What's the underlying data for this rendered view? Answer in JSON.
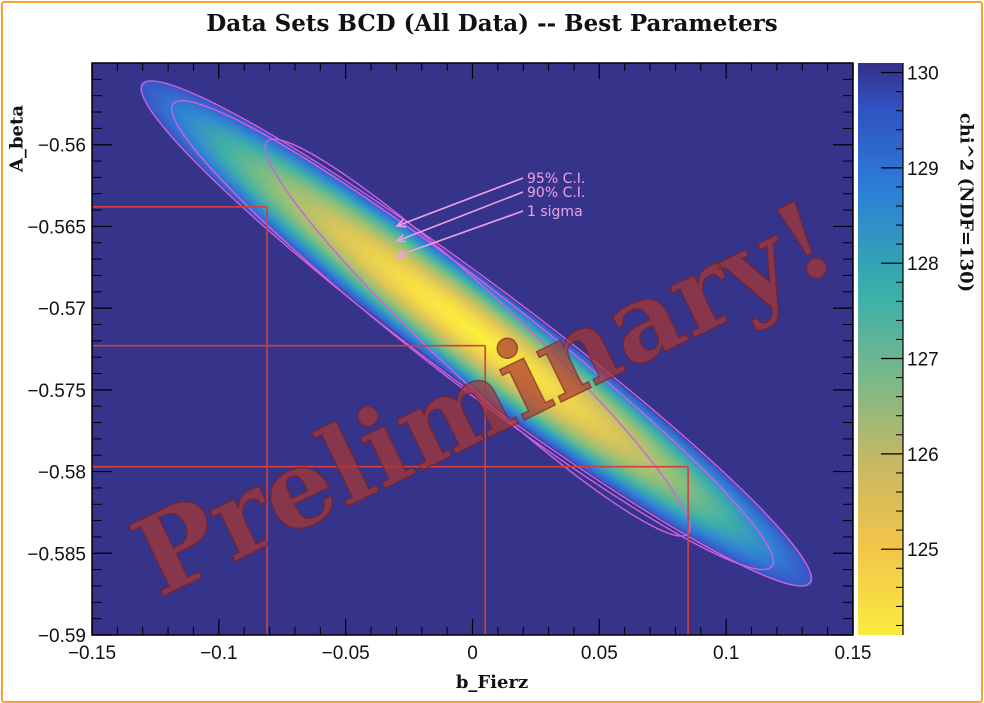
{
  "chart_data": {
    "type": "heatmap",
    "title": "Data Sets BCD (All Data) -- Best Parameters",
    "xlabel": "b_Fierz",
    "ylabel": "A_beta",
    "zlabel": "chi^2 (NDF=130)",
    "xlim": [
      -0.15,
      0.15
    ],
    "ylim": [
      -0.59,
      -0.555
    ],
    "zlim": [
      124.1,
      130.1
    ],
    "x_ticks": [
      -0.15,
      -0.1,
      -0.05,
      0,
      0.05,
      0.1,
      0.15
    ],
    "x_tick_labels": [
      "−0.15",
      "−0.1",
      "−0.05",
      "0",
      "0.05",
      "0.1",
      "0.15"
    ],
    "y_ticks": [
      -0.56,
      -0.565,
      -0.57,
      -0.575,
      -0.58,
      -0.585,
      -0.59
    ],
    "y_tick_labels": [
      "−0.56",
      "−0.565",
      "−0.57",
      "−0.575",
      "−0.58",
      "−0.585",
      "−0.59"
    ],
    "z_ticks": [
      125,
      126,
      127,
      128,
      129,
      130
    ],
    "z_tick_labels": [
      "125",
      "126",
      "127",
      "128",
      "129",
      "130"
    ],
    "best_fit": {
      "b_Fierz": 0.005,
      "A_beta": -0.5723,
      "chi2": 124.1
    },
    "contours": [
      {
        "label": "1 sigma",
        "b_range": [
          -0.081,
          0.085
        ],
        "A_range": [
          -0.5838,
          -0.5598
        ]
      },
      {
        "label": "90% C.I.",
        "b_range": [
          -0.118,
          0.118
        ],
        "A_range": [
          -0.5858,
          -0.5575
        ]
      },
      {
        "label": "95% C.I.",
        "b_range": [
          -0.13,
          0.133
        ],
        "A_range": [
          -0.5868,
          -0.5563
        ]
      }
    ],
    "lines": {
      "vertical_b": [
        -0.081,
        0.005,
        0.085
      ],
      "horizontal_A": [
        -0.5638,
        -0.5723,
        -0.5797
      ]
    },
    "colors": {
      "background": "#36348a",
      "minimum": "#f8ec40",
      "line": "#d04040",
      "contour": "#d060e0",
      "annotation": "#f0a0e8"
    }
  },
  "watermark": "Preliminary!"
}
